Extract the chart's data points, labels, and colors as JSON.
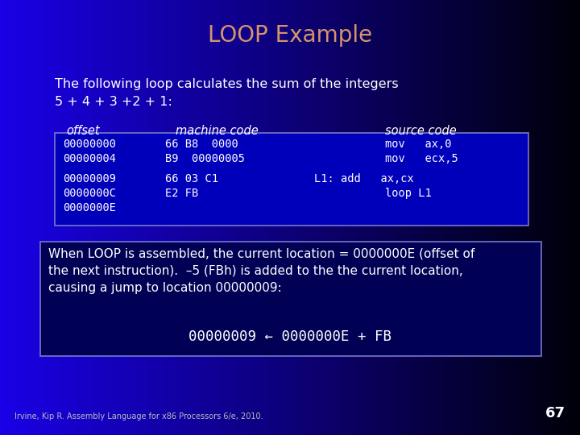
{
  "title": "LOOP Example",
  "title_color": "#D4956A",
  "slide_bg_left": "#1A00E8",
  "slide_bg_right": "#000010",
  "subtitle_text": "The following loop calculates the sum of the integers\n5 + 4 + 3 +2 + 1:",
  "subtitle_color": "#FFFFFF",
  "col_header_color": "#FFFFFF",
  "table_border": "#7777CC",
  "table_bg": "#0000BB",
  "mono_color": "#FFFFFF",
  "note_border": "#7777CC",
  "note_bg": "#000055",
  "note_text1": "When LOOP is assembled, the current location = 0000000E (offset of\nthe next instruction).  –5 (FBh) is added to the the current location,\ncausing a jump to location 00000009:",
  "note_text2": "00000009 ← 0000000E + FB",
  "note_color": "#FFFFFF",
  "footer_text": "Irvine, Kip R. Assembly Language for x86 Processors 6/e, 2010.",
  "footer_color": "#BBBBBB",
  "page_num": "67",
  "page_color": "#FFFFFF"
}
